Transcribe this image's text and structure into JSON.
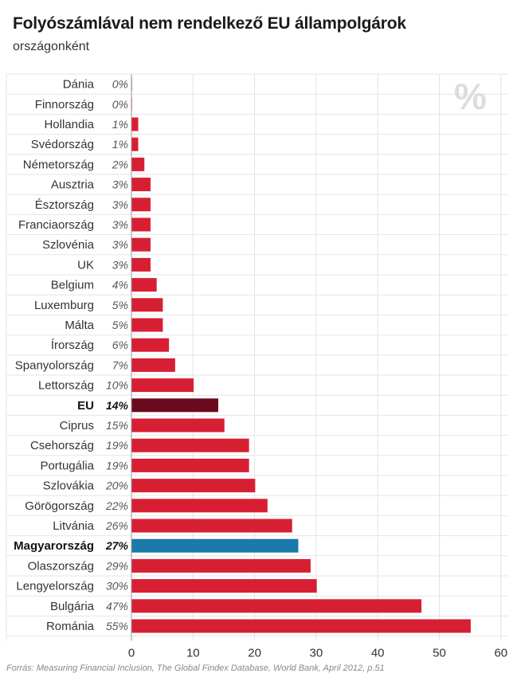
{
  "header": {
    "title": "Folyószámlával nem rendelkező EU állampolgárok",
    "subtitle": "országonként"
  },
  "source": "Forrás: Measuring Financial Inclusion, The Global Findex Database, World Bank, April 2012, p.51",
  "chart_data": {
    "type": "bar",
    "orientation": "horizontal",
    "unit_mark": "%",
    "categories": [
      "Dánia",
      "Finnország",
      "Hollandia",
      "Svédország",
      "Németország",
      "Ausztria",
      "Észtország",
      "Franciaország",
      "Szlovénia",
      "UK",
      "Belgium",
      "Luxemburg",
      "Málta",
      "Írország",
      "Spanyolország",
      "Lettország",
      "EU",
      "Ciprus",
      "Csehország",
      "Portugália",
      "Szlovákia",
      "Görögország",
      "Litvánia",
      "Magyarország",
      "Olaszország",
      "Lengyelország",
      "Bulgária",
      "Románia"
    ],
    "values": [
      0.1,
      0.1,
      1.1,
      1.1,
      2.1,
      3.1,
      3.1,
      3.1,
      3.1,
      3.1,
      4.1,
      5.1,
      5.1,
      6.1,
      7.1,
      10.1,
      14.1,
      15.1,
      19.1,
      19.1,
      20.1,
      22.1,
      26.1,
      27.1,
      29.1,
      30.1,
      47.1,
      55.1
    ],
    "value_labels": [
      "0%",
      "0%",
      "1%",
      "1%",
      "2%",
      "3%",
      "3%",
      "3%",
      "3%",
      "3%",
      "4%",
      "5%",
      "5%",
      "6%",
      "7%",
      "10%",
      "14%",
      "15%",
      "19%",
      "19%",
      "20%",
      "22%",
      "26%",
      "27%",
      "29%",
      "30%",
      "47%",
      "55%"
    ],
    "highlight": {
      "EU": "#6b0a1e",
      "Magyarország": "#1a7aaa"
    },
    "bold_categories": [
      "EU",
      "Magyarország"
    ],
    "bar_color": "#d71f34",
    "xlim": [
      0,
      60
    ],
    "xticks": [
      0,
      10,
      20,
      30,
      40,
      50,
      60
    ],
    "grid": true
  }
}
